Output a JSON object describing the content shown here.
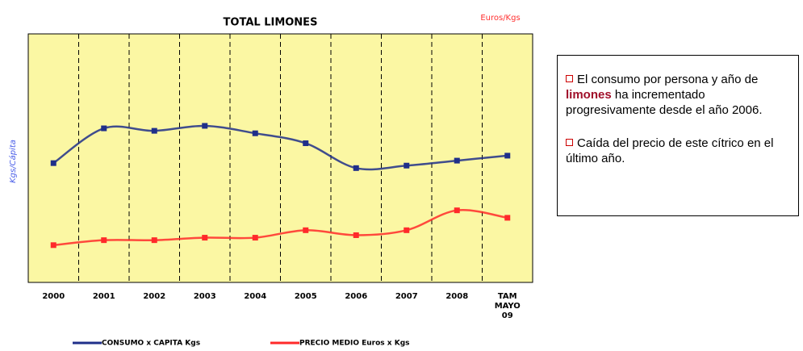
{
  "chart_data": {
    "type": "line",
    "title": "TOTAL LIMONES",
    "y_label": "Kgs/Cápita",
    "y2_label": "Euros/Kgs",
    "categories": [
      "2000",
      "2001",
      "2002",
      "2003",
      "2004",
      "2005",
      "2006",
      "2007",
      "2008",
      "TAM\nMAYO\n09"
    ],
    "series": [
      {
        "name": "CONSUMO x CAPITA Kgs",
        "color": "#1f2f8a",
        "values": [
          48,
          62,
          61,
          63,
          60,
          56,
          46,
          47,
          49,
          51
        ]
      },
      {
        "name": "PRECIO MEDIO Euros x Kgs",
        "color": "#ff2a2a",
        "values": [
          15,
          17,
          17,
          18,
          18,
          21,
          19,
          21,
          29,
          26
        ]
      }
    ],
    "ylim": [
      0,
      100
    ],
    "background": "#fbf7a3"
  },
  "notes": [
    {
      "before": "El consumo por persona y año de",
      "highlight": "limones",
      "after": "ha incrementado progresivamente desde el año 2006."
    },
    {
      "before": "Caída del precio de este cítrico en el último año."
    }
  ]
}
